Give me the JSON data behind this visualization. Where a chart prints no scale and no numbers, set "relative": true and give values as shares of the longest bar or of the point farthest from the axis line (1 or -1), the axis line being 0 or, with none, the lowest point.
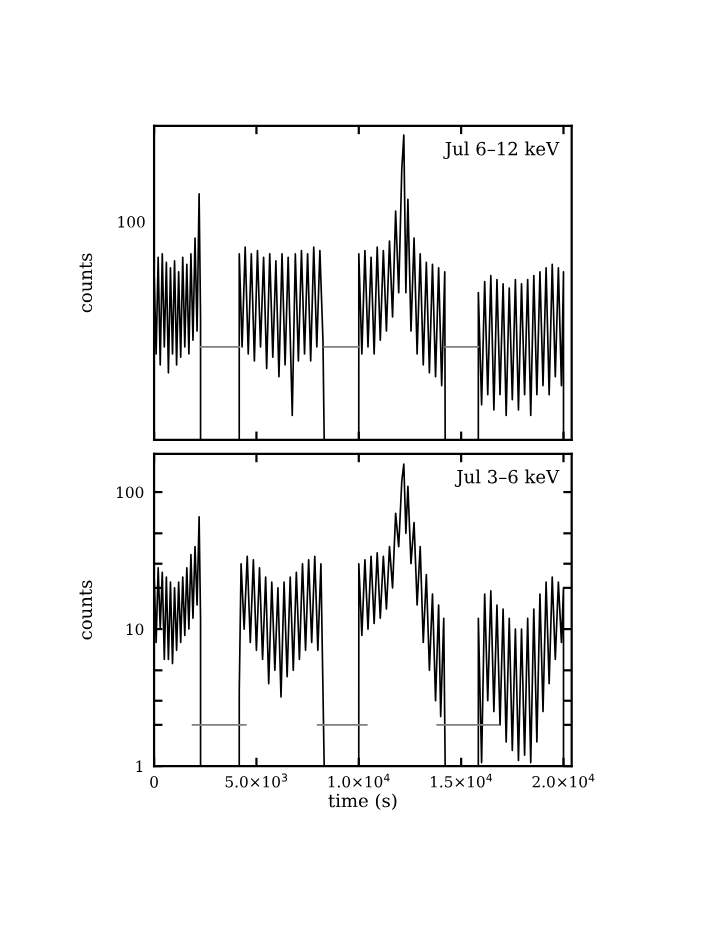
{
  "chart_data": [
    {
      "type": "line",
      "title": "Jul 6–12 keV",
      "ylabel": "counts",
      "annotations": [
        "100"
      ],
      "relative": true,
      "xlim": [
        0,
        20400
      ],
      "xticks": [
        0,
        5000,
        10000,
        15000,
        20000
      ],
      "tick_labels": false,
      "grid": false,
      "legend": false,
      "marker": "none",
      "line_style": "solid",
      "series": [
        {
          "color": "#000000",
          "x": [
            0,
            100,
            200,
            300,
            400,
            500,
            600,
            700,
            800,
            900,
            1000,
            1100,
            1200,
            1300,
            1400,
            1500,
            1600,
            1700,
            1800,
            1900,
            2000,
            2100,
            2200,
            2270,
            2271,
            3000,
            4160,
            4161,
            4300,
            4450,
            4600,
            4750,
            4900,
            5050,
            5200,
            5350,
            5500,
            5650,
            5800,
            5950,
            6100,
            6250,
            6400,
            6550,
            6750,
            6900,
            7050,
            7200,
            7350,
            7500,
            7650,
            7800,
            7950,
            8100,
            8250,
            8310,
            9000,
            10000,
            10001,
            10150,
            10300,
            10450,
            10600,
            10750,
            10900,
            11050,
            11200,
            11350,
            11500,
            11650,
            11800,
            11950,
            12100,
            12200,
            12300,
            12400,
            12550,
            12700,
            12850,
            13000,
            13150,
            13300,
            13450,
            13600,
            13750,
            13900,
            14050,
            14200,
            14220,
            15000,
            15840,
            15841,
            16000,
            16150,
            16300,
            16450,
            16600,
            16750,
            16900,
            17050,
            17200,
            17350,
            17500,
            17650,
            17800,
            17950,
            18100,
            18250,
            18400,
            18550,
            18700,
            18850,
            19000,
            19150,
            19300,
            19450,
            19600,
            19750,
            19900,
            20000,
            20001
          ],
          "values": [
            0.551,
            0.282,
            0.599,
            0.246,
            0.61,
            0.305,
            0.582,
            0.22,
            0.564,
            0.282,
            0.587,
            0.246,
            0.551,
            0.271,
            0.599,
            0.305,
            0.576,
            0.282,
            0.61,
            0.327,
            0.662,
            0.357,
            0.807,
            0.403,
            0,
            null,
            0,
            0.61,
            0.305,
            0.632,
            0.282,
            0.61,
            0.259,
            0.621,
            0.305,
            0.599,
            0.234,
            0.61,
            0.271,
            0.587,
            0.207,
            0.61,
            0.246,
            0.599,
            0.08,
            0.61,
            0.259,
            0.621,
            0.282,
            0.61,
            0.259,
            0.632,
            0.305,
            0.621,
            0.327,
            0,
            null,
            0,
            0.61,
            0.282,
            0.621,
            0.305,
            0.599,
            0.282,
            0.632,
            0.327,
            0.621,
            0.357,
            0.652,
            0.403,
            0.75,
            0.483,
            0.887,
            1,
            0.483,
            0.789,
            0.357,
            0.662,
            0.282,
            0.61,
            0.246,
            0.582,
            0.22,
            0.576,
            0.207,
            0.564,
            0.178,
            0.551,
            0,
            null,
            0,
            0.483,
            0.115,
            0.519,
            0.148,
            0.539,
            0.098,
            0.526,
            0.148,
            0.512,
            0.08,
            0.498,
            0.132,
            0.526,
            0.098,
            0.512,
            0.148,
            0.526,
            0.08,
            0.539,
            0.148,
            0.551,
            0.178,
            0.564,
            0.148,
            0.576,
            0.207,
            0.564,
            0.178,
            0.551,
            0
          ]
        },
        {
          "color": "#808080",
          "x": [
            2270,
            4160,
            null,
            8310,
            10000,
            null,
            14220,
            15840
          ],
          "values": [
            0.305,
            0.305,
            null,
            0.305,
            0.305,
            null,
            0.305,
            0.305
          ]
        }
      ]
    },
    {
      "type": "line",
      "title": "Jul 3–6 keV",
      "xlabel": "time (s)",
      "ylabel": "counts",
      "log": "y",
      "xlim": [
        0,
        20400
      ],
      "ylim": [
        1,
        190
      ],
      "xticks": [
        0,
        {
          "value": 5000,
          "label": "5.0×10$^{3}$"
        },
        {
          "value": 10000,
          "label": "1.0×10$^{4}$"
        },
        {
          "value": 15000,
          "label": "1.5×10$^{4}$"
        },
        {
          "value": 20000,
          "label": "2.0×10$^{4}$"
        }
      ],
      "yticks": [
        1,
        {
          "value": 2,
          "label": null
        },
        {
          "value": 3,
          "label": null
        },
        {
          "value": 5,
          "label": null
        },
        10,
        {
          "value": 20,
          "label": null
        },
        {
          "value": 30,
          "label": null
        },
        {
          "value": 50,
          "label": null
        },
        100
      ],
      "grid": false,
      "legend": false,
      "marker": "none",
      "line_style": "solid",
      "series": [
        {
          "color": "#000000",
          "x": [
            0,
            100,
            200,
            300,
            400,
            500,
            600,
            700,
            800,
            900,
            1000,
            1100,
            1200,
            1300,
            1400,
            1500,
            1600,
            1700,
            1800,
            1900,
            2000,
            2100,
            2200,
            2270,
            2271,
            3000,
            4160,
            4161,
            4250,
            4400,
            4550,
            4700,
            4850,
            5000,
            5150,
            5300,
            5450,
            5600,
            5750,
            5900,
            6050,
            6200,
            6350,
            6500,
            6650,
            6800,
            6950,
            7100,
            7250,
            7400,
            7550,
            7700,
            7850,
            8000,
            8150,
            8310,
            9000,
            10000,
            10001,
            10150,
            10300,
            10450,
            10600,
            10750,
            10900,
            11050,
            11200,
            11350,
            11500,
            11650,
            11800,
            11950,
            12100,
            12200,
            12300,
            12400,
            12550,
            12700,
            12850,
            13000,
            13150,
            13300,
            13450,
            13600,
            13750,
            13900,
            14000,
            14150,
            14220,
            15000,
            15840,
            15841,
            16000,
            16150,
            16300,
            16450,
            16600,
            16750,
            16900,
            17050,
            17200,
            17350,
            17500,
            17650,
            17800,
            17950,
            18100,
            18250,
            18400,
            18550,
            18700,
            18850,
            19000,
            19150,
            19300,
            19450,
            19600,
            19750,
            19900,
            20000,
            20001
          ],
          "values": [
            25,
            8,
            28,
            10,
            26,
            6,
            24,
            6,
            22,
            5.6,
            20,
            7,
            22,
            8,
            24,
            9,
            28,
            10,
            35,
            12,
            40,
            15,
            66,
            12,
            1,
            null,
            1,
            3.5,
            30,
            10,
            34,
            8,
            32,
            7,
            28,
            6,
            24,
            4,
            22,
            5,
            20,
            3.2,
            22,
            4.5,
            24,
            5,
            26,
            6,
            30,
            7,
            32,
            8,
            34,
            7,
            30,
            1,
            null,
            1,
            30,
            9,
            32,
            10,
            34,
            11,
            36,
            12,
            34,
            14,
            40,
            20,
            70,
            40,
            120,
            160,
            50,
            110,
            30,
            60,
            15,
            40,
            8,
            25,
            5,
            18,
            3,
            15,
            2.3,
            12,
            1,
            null,
            1,
            12,
            1.06,
            18,
            3,
            19,
            2.5,
            15,
            2,
            14,
            1.5,
            12,
            1.3,
            10,
            1.1,
            10,
            1.2,
            12,
            1.06,
            14,
            1.5,
            18,
            2.5,
            22,
            4,
            24,
            6,
            22,
            8,
            20,
            1
          ]
        },
        {
          "color": "#808080",
          "x": [
            1880,
            4480,
            null,
            7990,
            10390,
            null,
            13830,
            16820
          ],
          "values": [
            2,
            2,
            null,
            2,
            2,
            null,
            2,
            2
          ]
        }
      ]
    }
  ]
}
